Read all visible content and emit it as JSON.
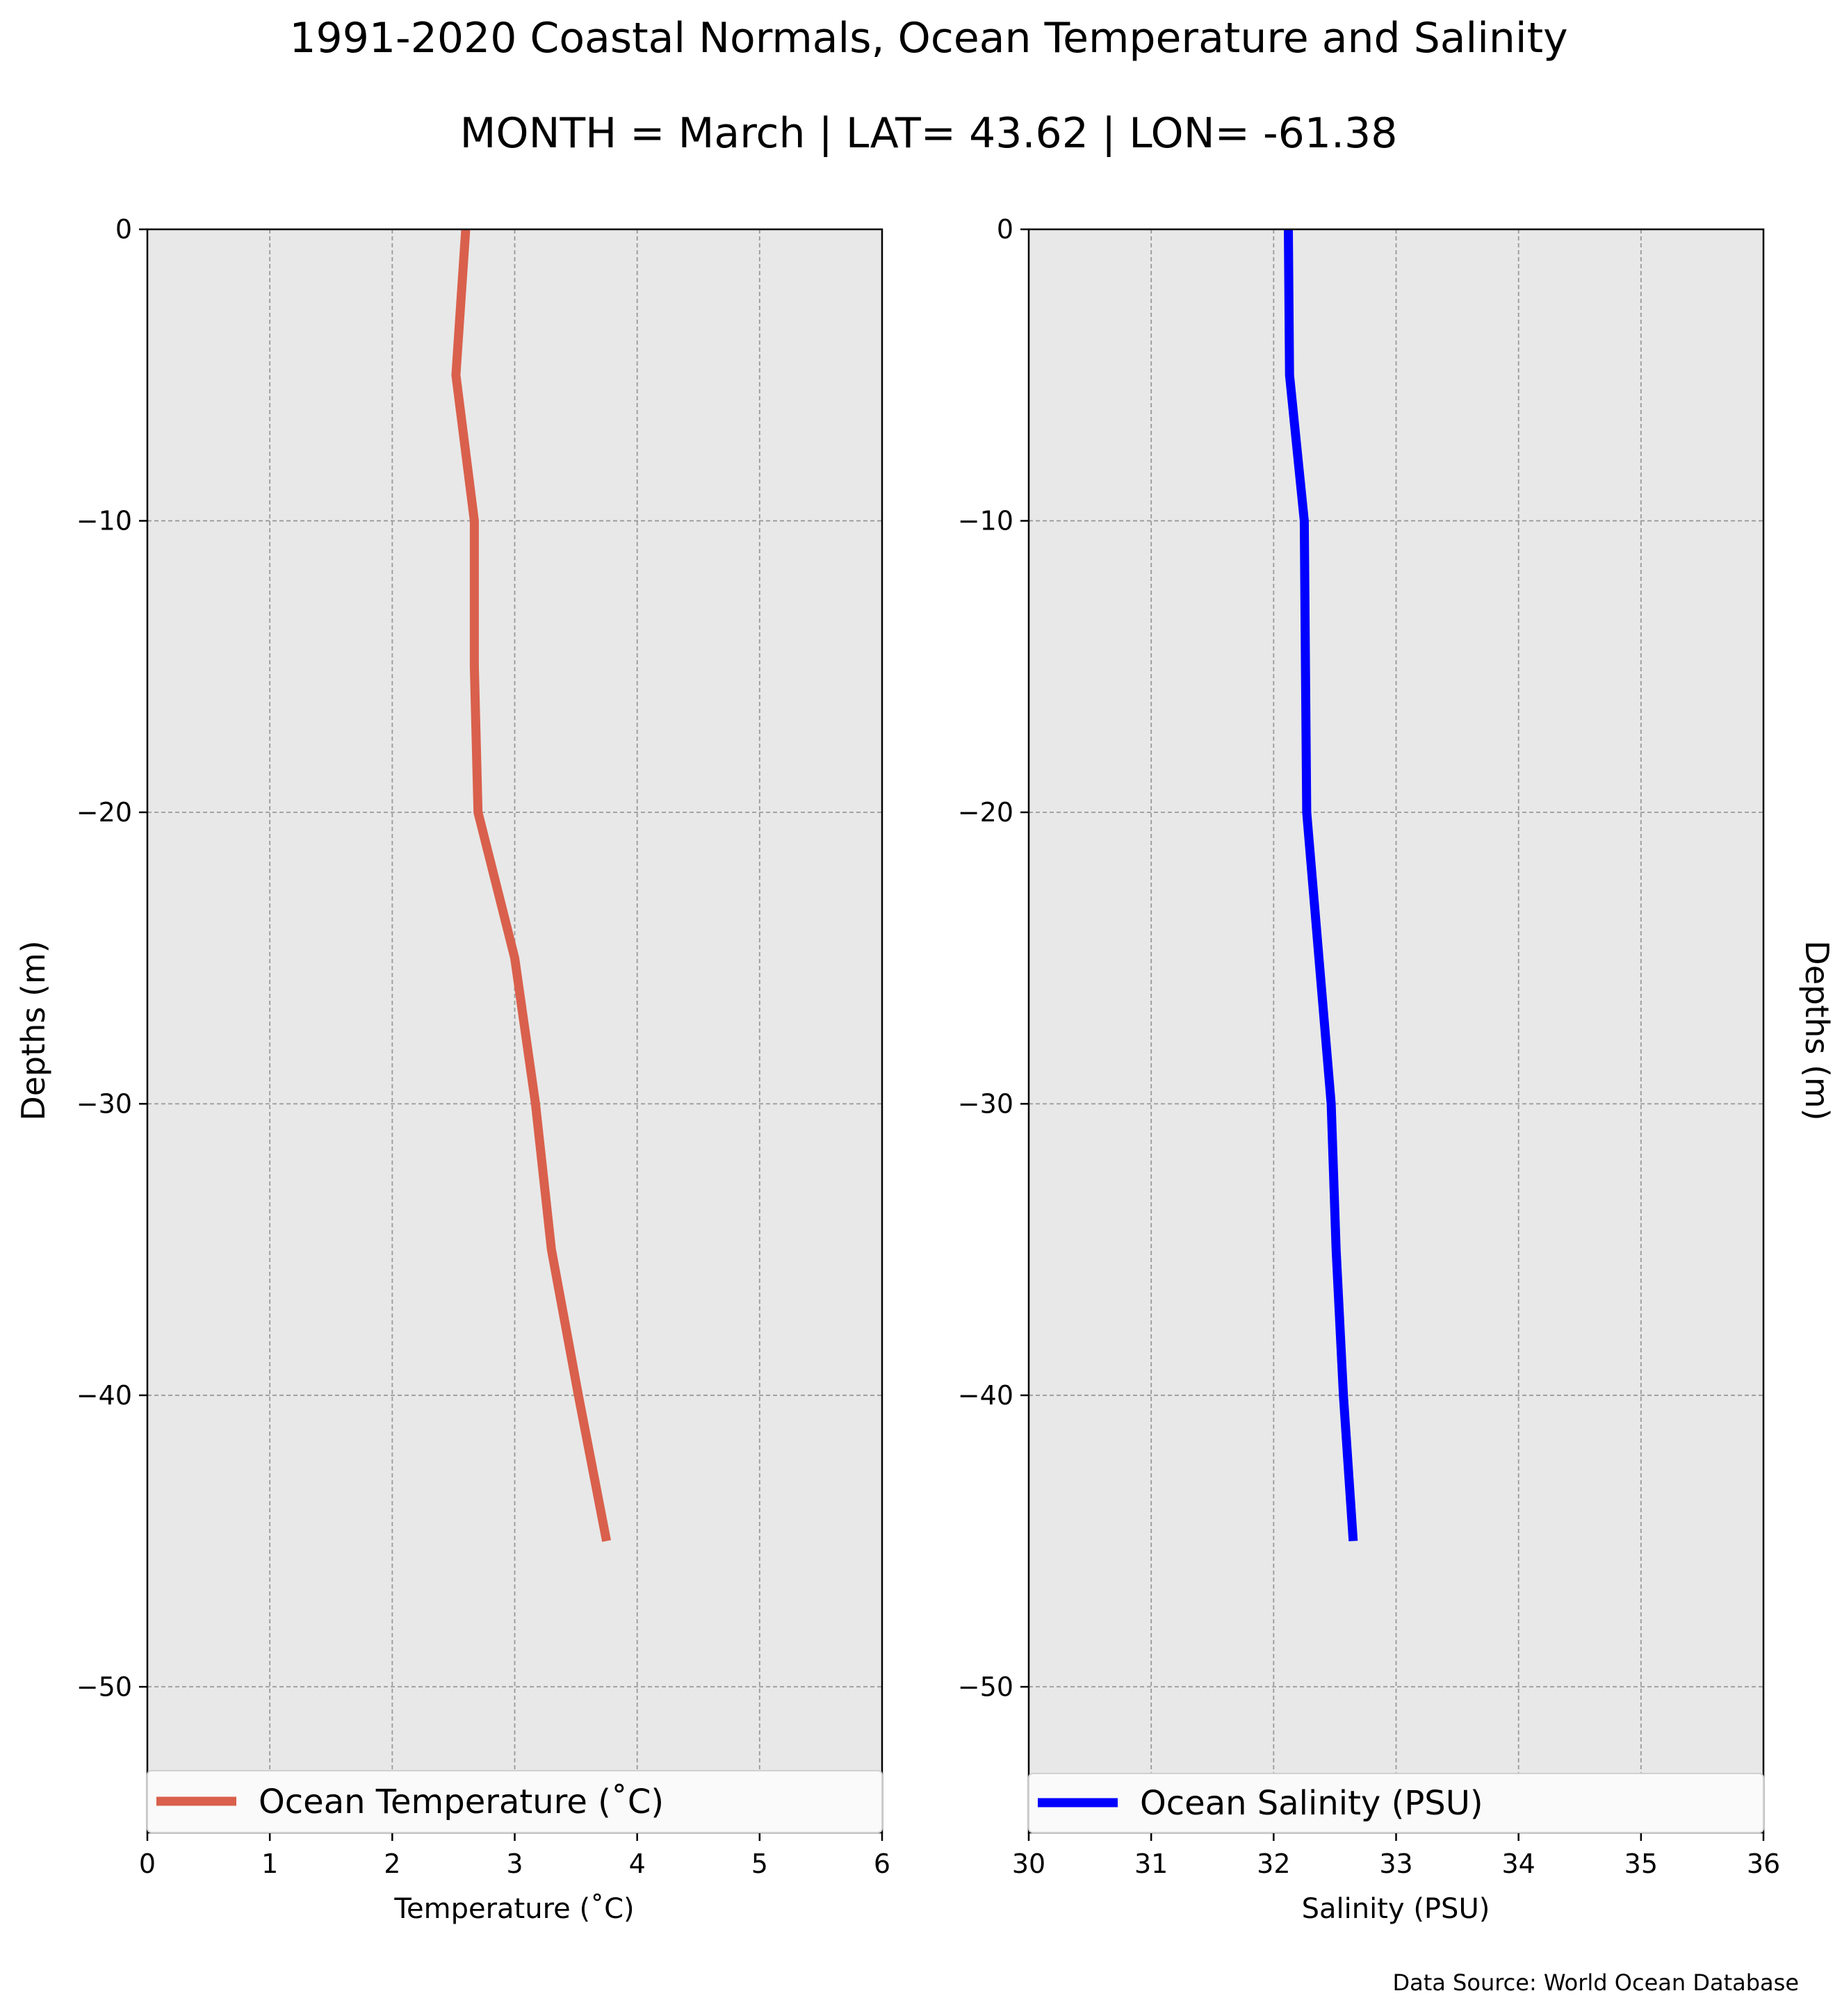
{
  "title": "1991-2020 Coastal Normals, Ocean Temperature and Salinity",
  "subtitle": "MONTH = March | LAT= 43.62 | LON= -61.38",
  "source": "Data Source: World Ocean Database",
  "colors": {
    "temperature": "#d9604c",
    "salinity": "#0000ff",
    "panel_bg": "#e8e8e8",
    "grid": "#999999"
  },
  "chart_data": [
    {
      "type": "line",
      "xlabel": "Temperature ($^\\circ$C)",
      "xlabel_display": "Temperature (˚C)",
      "ylabel": "Depths (m)",
      "xlim": [
        0,
        6
      ],
      "ylim": [
        -55,
        0
      ],
      "xticks": [
        "0",
        "1",
        "2",
        "3",
        "4",
        "5",
        "6"
      ],
      "yticks": [
        "0",
        "−10",
        "−20",
        "−30",
        "−40",
        "−50"
      ],
      "ytick_values": [
        0,
        -10,
        -20,
        -30,
        -40,
        -50
      ],
      "grid": true,
      "legend_position": "bottom",
      "series": [
        {
          "name": "Ocean Temperature (˚C)",
          "x": [
            2.6,
            2.52,
            2.67,
            2.67,
            2.7,
            3.0,
            3.17,
            3.3,
            3.52,
            3.75
          ],
          "y": [
            0,
            -5,
            -10,
            -15,
            -20,
            -25,
            -30,
            -35,
            -40,
            -45
          ]
        }
      ]
    },
    {
      "type": "line",
      "xlabel": "Salinity (PSU)",
      "ylabel": "Depths (m)",
      "xlim": [
        30,
        36
      ],
      "ylim": [
        -55,
        0
      ],
      "xticks": [
        "30",
        "31",
        "32",
        "33",
        "34",
        "35",
        "36"
      ],
      "yticks": [
        "0",
        "−10",
        "−20",
        "−30",
        "−40",
        "−50"
      ],
      "ytick_values": [
        0,
        -10,
        -20,
        -30,
        -40,
        -50
      ],
      "grid": true,
      "legend_position": "bottom",
      "series": [
        {
          "name": "Ocean Salinity (PSU)",
          "x": [
            32.12,
            32.13,
            32.25,
            32.26,
            32.27,
            32.37,
            32.47,
            32.51,
            32.57,
            32.65
          ],
          "y": [
            0,
            -5,
            -10,
            -15,
            -20,
            -25,
            -30,
            -35,
            -40,
            -45
          ]
        }
      ]
    }
  ]
}
